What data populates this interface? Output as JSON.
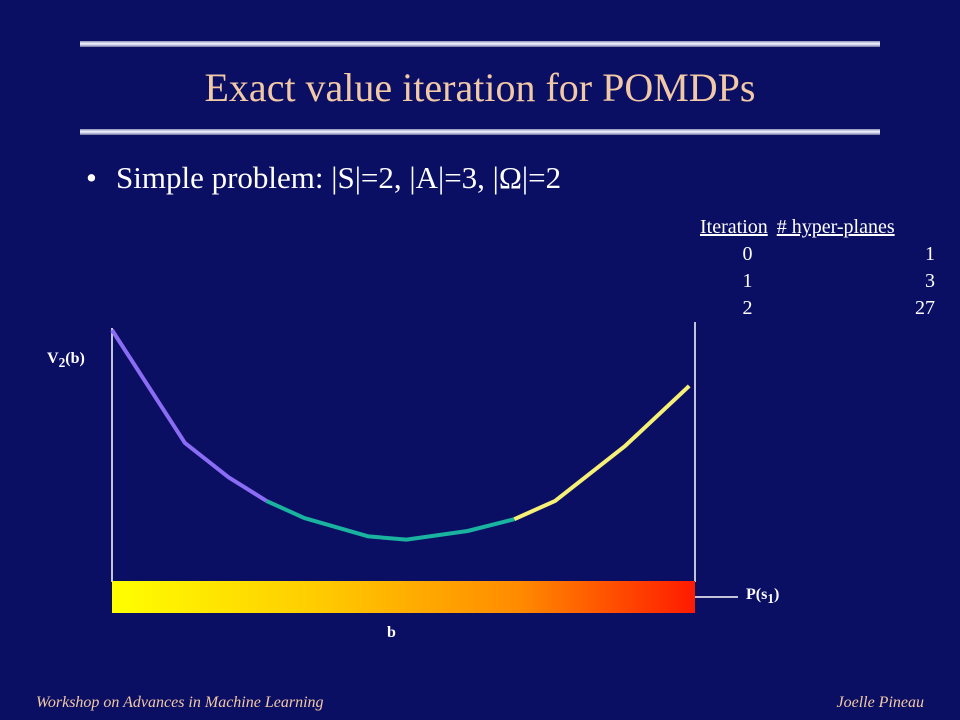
{
  "title": "Exact value iteration for POMDPs",
  "bullet": "Simple problem: |S|=2, |A|=3, |Ω|=2",
  "table": {
    "headers": [
      "Iteration",
      "# hyper-planes"
    ],
    "rows": [
      [
        "0",
        "1"
      ],
      [
        "1",
        "3"
      ],
      [
        "2",
        "27"
      ]
    ]
  },
  "chart_data": {
    "type": "line",
    "ylabel_main": "V",
    "ylabel_sub": "2",
    "ylabel_tail": "(b)",
    "xlabel_main": "P(s",
    "xlabel_sub": "1",
    "xlabel_tail": ")",
    "belief_label": "b",
    "xlim": [
      0,
      1
    ],
    "segments": [
      {
        "color": "#8b6cf5",
        "points": [
          [
            0.0,
            1.0
          ],
          [
            0.125,
            0.475
          ],
          [
            0.2,
            0.315
          ],
          [
            0.265,
            0.205
          ]
        ]
      },
      {
        "color": "#19b3a0",
        "points": [
          [
            0.265,
            0.205
          ],
          [
            0.33,
            0.125
          ],
          [
            0.44,
            0.04
          ],
          [
            0.505,
            0.025
          ],
          [
            0.61,
            0.065
          ],
          [
            0.69,
            0.12
          ]
        ]
      },
      {
        "color": "#f6f077",
        "points": [
          [
            0.69,
            0.12
          ],
          [
            0.76,
            0.205
          ],
          [
            0.88,
            0.46
          ],
          [
            0.99,
            0.74
          ]
        ]
      }
    ],
    "belief_gradient": [
      "#ffff00",
      "#ffcc00",
      "#ff8a00",
      "#ff1a00"
    ]
  },
  "footer": {
    "left": "Workshop on Advances in Machine Learning",
    "right": "Joelle Pineau"
  }
}
